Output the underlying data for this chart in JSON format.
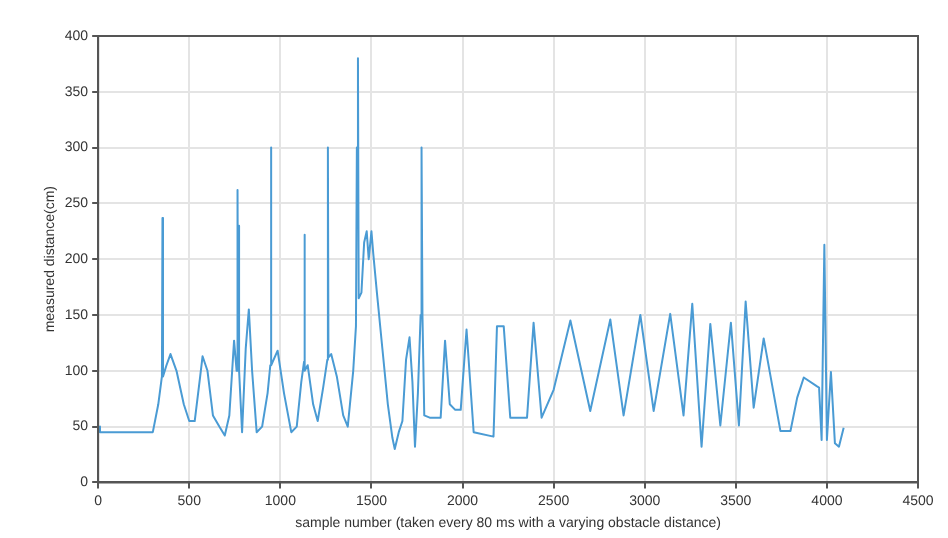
{
  "chart_data": {
    "type": "line",
    "xlabel": "sample number (taken every 80 ms with a varying obstacle distance)",
    "ylabel": "measured distance(cm)",
    "xlim": [
      0,
      4500
    ],
    "xticks": [
      0,
      500,
      1000,
      1500,
      2000,
      2500,
      3000,
      3500,
      4000,
      4500
    ],
    "ylim": [
      0,
      400
    ],
    "yticks": [
      0,
      50,
      100,
      150,
      200,
      250,
      300,
      350,
      400
    ],
    "grid": true,
    "legend": false,
    "marker": "none",
    "line_style": "solid",
    "series": [
      {
        "color": "#4a9bd4",
        "x": [
          0,
          10,
          300,
          330,
          350,
          353,
          356,
          375,
          397,
          430,
          470,
          500,
          530,
          560,
          573,
          600,
          630,
          665,
          695,
          720,
          746,
          760,
          765,
          768,
          772,
          775,
          790,
          810,
          827,
          845,
          870,
          900,
          930,
          945,
          948,
          951,
          985,
          1020,
          1060,
          1090,
          1115,
          1130,
          1132,
          1135,
          1150,
          1180,
          1205,
          1235,
          1258,
          1261,
          1264,
          1279,
          1310,
          1345,
          1370,
          1400,
          1415,
          1420,
          1426,
          1430,
          1445,
          1460,
          1474,
          1485,
          1500,
          1510,
          1530,
          1560,
          1590,
          1615,
          1628,
          1650,
          1670,
          1690,
          1709,
          1725,
          1739,
          1755,
          1770,
          1775,
          1780,
          1790,
          1820,
          1880,
          1904,
          1930,
          1960,
          1990,
          2022,
          2061,
          2170,
          2189,
          2226,
          2262,
          2354,
          2390,
          2434,
          2500,
          2592,
          2701,
          2811,
          2884,
          2976,
          3049,
          3140,
          3213,
          3261,
          3312,
          3360,
          3415,
          3473,
          3517,
          3554,
          3598,
          3653,
          3745,
          3800,
          3837,
          3873,
          3946,
          3957,
          3971,
          3986,
          4000,
          4022,
          4044,
          4066,
          4092
        ],
        "values": [
          50,
          45,
          45,
          70,
          95,
          237,
          95,
          105,
          115,
          100,
          70,
          55,
          55,
          95,
          113,
          100,
          60,
          50,
          42,
          60,
          127,
          100,
          262,
          100,
          230,
          100,
          45,
          120,
          155,
          100,
          45,
          50,
          80,
          105,
          300,
          105,
          118,
          80,
          45,
          50,
          90,
          108,
          222,
          100,
          105,
          70,
          55,
          85,
          110,
          300,
          112,
          115,
          95,
          60,
          50,
          100,
          140,
          300,
          380,
          165,
          170,
          215,
          225,
          200,
          225,
          205,
          170,
          120,
          70,
          40,
          30,
          45,
          55,
          110,
          130,
          90,
          32,
          80,
          150,
          300,
          150,
          60,
          58,
          58,
          127,
          70,
          65,
          65,
          137,
          45,
          41,
          140,
          140,
          58,
          58,
          143,
          58,
          83,
          145,
          64,
          146,
          60,
          150,
          64,
          151,
          60,
          160,
          32,
          142,
          51,
          143,
          51,
          162,
          67,
          129,
          46,
          46,
          76,
          94,
          86,
          85,
          38,
          213,
          38,
          99,
          35,
          32,
          49
        ]
      }
    ]
  }
}
